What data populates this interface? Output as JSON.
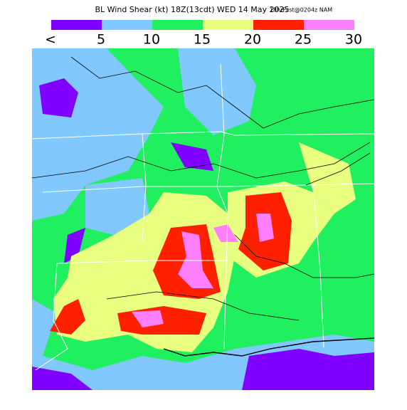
{
  "header": {
    "title": "BL Wind Shear (kt) 18Z(13cdt) WED 14 May 2025",
    "subtitle": "18hrFcst@0204z NAM"
  },
  "legend": {
    "labels": [
      "<",
      "5",
      "10",
      "15",
      "20",
      "25",
      "30"
    ],
    "colors": [
      "#8000ff",
      "#80c8ff",
      "#20f060",
      "#e8ff80",
      "#ff2000",
      "#ff80ff"
    ]
  }
}
